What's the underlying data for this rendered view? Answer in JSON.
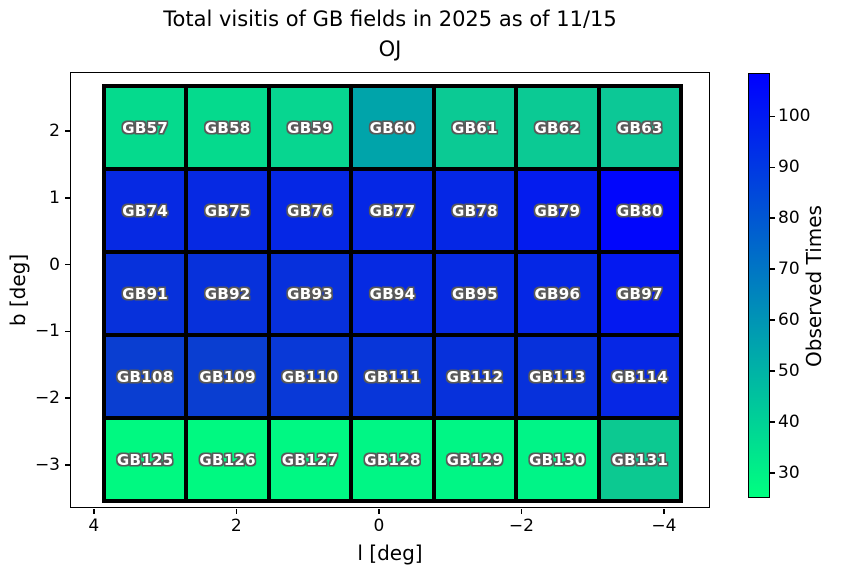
{
  "figure": {
    "title": "Total visitis of GB fields in 2025 as of 11/15",
    "subtitle": "OJ"
  },
  "chart_data": {
    "type": "heatmap",
    "title": "Total visitis of GB fields in 2025 as of 11/15",
    "subtitle": "OJ",
    "xlabel": "l [deg]",
    "ylabel": "b [deg]",
    "colorbar_label": "Observed Times",
    "colormap": "winter_r",
    "colormap_min_color": "#00ff80",
    "colormap_max_color": "#0000ff",
    "grid_shape": {
      "columns": 7,
      "rows": 5
    },
    "x_axis": {
      "lim": [
        4.32,
        -4.66
      ],
      "ticks": [
        {
          "label": "4",
          "value": 4
        },
        {
          "label": "2",
          "value": 2
        },
        {
          "label": "0",
          "value": 0
        },
        {
          "label": "−2",
          "value": -2
        },
        {
          "label": "−4",
          "value": -4
        }
      ]
    },
    "y_axis": {
      "lim": [
        2.87,
        -3.66
      ],
      "ticks": [
        {
          "label": "2",
          "value": 2
        },
        {
          "label": "1",
          "value": 1
        },
        {
          "label": "0",
          "value": 0
        },
        {
          "label": "−1",
          "value": -1
        },
        {
          "label": "−2",
          "value": -2
        },
        {
          "label": "−3",
          "value": -3
        }
      ]
    },
    "colorbar": {
      "lim": [
        108.3,
        24.9
      ],
      "ticks": [
        {
          "label": "100",
          "value": 100
        },
        {
          "label": "90",
          "value": 90
        },
        {
          "label": "80",
          "value": 80
        },
        {
          "label": "70",
          "value": 70
        },
        {
          "label": "60",
          "value": 60
        },
        {
          "label": "50",
          "value": 50
        },
        {
          "label": "40",
          "value": 40
        },
        {
          "label": "30",
          "value": 30
        }
      ]
    },
    "rows": [
      {
        "cells": [
          {
            "label": "GB57",
            "value": 37,
            "color": "#05da8d"
          },
          {
            "label": "GB58",
            "value": 37,
            "color": "#05da8d"
          },
          {
            "label": "GB59",
            "value": 38,
            "color": "#07d690"
          },
          {
            "label": "GB60",
            "value": 55,
            "color": "#00a4aa"
          },
          {
            "label": "GB61",
            "value": 42,
            "color": "#0bca94"
          },
          {
            "label": "GB62",
            "value": 42,
            "color": "#0bca94"
          },
          {
            "label": "GB63",
            "value": 43,
            "color": "#0cc896"
          }
        ]
      },
      {
        "cells": [
          {
            "label": "GB74",
            "value": 95,
            "color": "#0629e3"
          },
          {
            "label": "GB75",
            "value": 95,
            "color": "#0629e3"
          },
          {
            "label": "GB76",
            "value": 96,
            "color": "#0527e5"
          },
          {
            "label": "GB77",
            "value": 96,
            "color": "#0527e5"
          },
          {
            "label": "GB78",
            "value": 96,
            "color": "#0527e5"
          },
          {
            "label": "GB79",
            "value": 99,
            "color": "#041cee"
          },
          {
            "label": "GB80",
            "value": 107,
            "color": "#0106fc"
          }
        ]
      },
      {
        "cells": [
          {
            "label": "GB91",
            "value": 92,
            "color": "#0731db"
          },
          {
            "label": "GB92",
            "value": 92,
            "color": "#0731db"
          },
          {
            "label": "GB93",
            "value": 92,
            "color": "#0730dc"
          },
          {
            "label": "GB94",
            "value": 94,
            "color": "#062ae2"
          },
          {
            "label": "GB95",
            "value": 94,
            "color": "#062ae2"
          },
          {
            "label": "GB96",
            "value": 96,
            "color": "#0527e5"
          },
          {
            "label": "GB97",
            "value": 100,
            "color": "#0419f0"
          }
        ]
      },
      {
        "cells": [
          {
            "label": "GB108",
            "value": 88,
            "color": "#0a3ed1"
          },
          {
            "label": "GB109",
            "value": 88,
            "color": "#0a3ed1"
          },
          {
            "label": "GB110",
            "value": 89,
            "color": "#0939d7"
          },
          {
            "label": "GB111",
            "value": 90,
            "color": "#0836d9"
          },
          {
            "label": "GB112",
            "value": 92,
            "color": "#0731db"
          },
          {
            "label": "GB113",
            "value": 92,
            "color": "#0731db"
          },
          {
            "label": "GB114",
            "value": 96,
            "color": "#0627e5"
          }
        ]
      },
      {
        "cells": [
          {
            "label": "GB125",
            "value": 26,
            "color": "#00f981"
          },
          {
            "label": "GB126",
            "value": 26,
            "color": "#00f981"
          },
          {
            "label": "GB127",
            "value": 27,
            "color": "#00f883"
          },
          {
            "label": "GB128",
            "value": 28,
            "color": "#00f685"
          },
          {
            "label": "GB129",
            "value": 28,
            "color": "#00f685"
          },
          {
            "label": "GB130",
            "value": 29,
            "color": "#00f487"
          },
          {
            "label": "GB131",
            "value": 43,
            "color": "#0cc991"
          }
        ]
      }
    ]
  }
}
